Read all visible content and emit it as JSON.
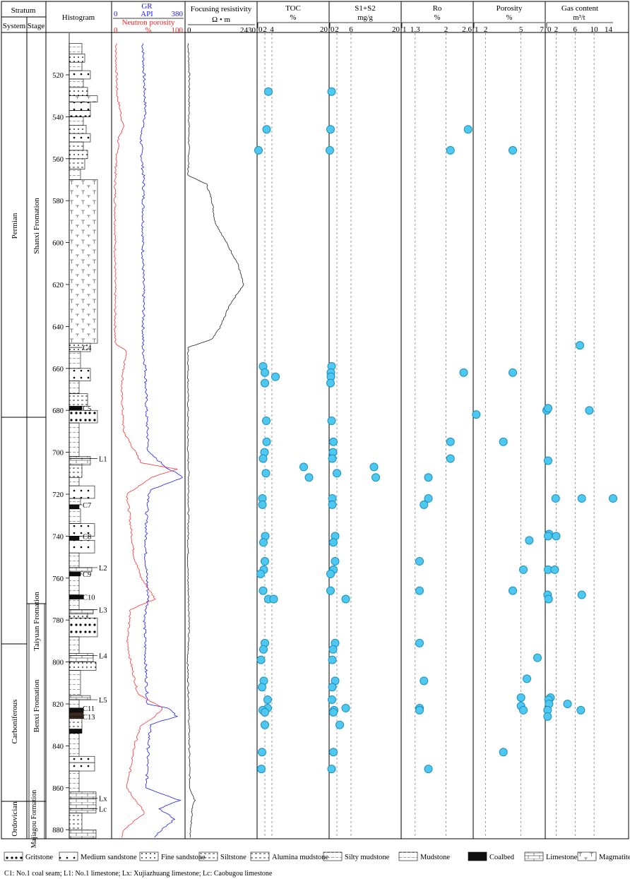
{
  "header": {
    "stratum": "Stratum",
    "system": "System",
    "stage": "Stage",
    "histogram": "Histogram",
    "gr_label": "GR",
    "gr_unit": "API",
    "gr_min": "0",
    "gr_max": "380",
    "np_label": "Neutron porosity",
    "np_min": "0",
    "np_unit": "%",
    "np_max": "100",
    "fr_label": "Focusing resistivity",
    "fr_unit": "Ω • m",
    "fr_min": "0",
    "fr_max": "2430"
  },
  "systems": [
    "Permian",
    "Carboniferous",
    "Ordovician"
  ],
  "formations": [
    "Shanxi Fromation",
    "Taiyuan Fromation",
    "Benxi Fromation",
    "Majiagou Formation"
  ],
  "depth_ticks": [
    520,
    540,
    560,
    580,
    600,
    620,
    640,
    660,
    680,
    700,
    720,
    740,
    760,
    780,
    800,
    820,
    840,
    860,
    880
  ],
  "markers": [
    {
      "label": "C4",
      "depth": 650
    },
    {
      "label": "C5",
      "depth": 679
    },
    {
      "label": "L1",
      "depth": 703
    },
    {
      "label": "C7",
      "depth": 725
    },
    {
      "label": "C8",
      "depth": 740
    },
    {
      "label": "L2",
      "depth": 755
    },
    {
      "label": "C9",
      "depth": 758
    },
    {
      "label": "C10",
      "depth": 769
    },
    {
      "label": "L3",
      "depth": 775
    },
    {
      "label": "L4",
      "depth": 797
    },
    {
      "label": "L5",
      "depth": 818
    },
    {
      "label": "C11",
      "depth": 822
    },
    {
      "label": "C13",
      "depth": 826
    },
    {
      "label": "Lx",
      "depth": 865
    },
    {
      "label": "Lc",
      "depth": 870
    }
  ],
  "chart_data": [
    {
      "type": "scatter",
      "title": "TOC",
      "unit": "%",
      "xlim": [
        0,
        20
      ],
      "ticks": [
        "0",
        "2",
        "4",
        "20"
      ],
      "points": [
        [
          3,
          528
        ],
        [
          2.5,
          546
        ],
        [
          0.2,
          556
        ],
        [
          1.5,
          659
        ],
        [
          2,
          662
        ],
        [
          5,
          664
        ],
        [
          2,
          667
        ],
        [
          2.4,
          685
        ],
        [
          2.5,
          695
        ],
        [
          1.9,
          700
        ],
        [
          1.5,
          703
        ],
        [
          13,
          707
        ],
        [
          2.3,
          710
        ],
        [
          14.5,
          712
        ],
        [
          1.3,
          722
        ],
        [
          1.3,
          725
        ],
        [
          2.1,
          740
        ],
        [
          1.6,
          743
        ],
        [
          2,
          752
        ],
        [
          1.7,
          756
        ],
        [
          0.8,
          758
        ],
        [
          1.5,
          766
        ],
        [
          3,
          770
        ],
        [
          4.5,
          770
        ],
        [
          2,
          791
        ],
        [
          1.6,
          794
        ],
        [
          0.9,
          799
        ],
        [
          1.7,
          809
        ],
        [
          1.2,
          812
        ],
        [
          2.8,
          818
        ],
        [
          2.8,
          822
        ],
        [
          1.4,
          823
        ],
        [
          2,
          824
        ],
        [
          2,
          830
        ],
        [
          1.2,
          843
        ],
        [
          1,
          851
        ]
      ]
    },
    {
      "type": "scatter",
      "title": "S1+S2",
      "unit": "mg/g",
      "xlim": [
        0,
        20
      ],
      "ticks": [
        "0",
        "2",
        "6",
        "20"
      ],
      "points": [
        [
          0.5,
          528
        ],
        [
          0.2,
          546
        ],
        [
          0,
          556
        ],
        [
          0.5,
          659
        ],
        [
          0.3,
          662
        ],
        [
          0.3,
          664
        ],
        [
          0.2,
          667
        ],
        [
          0.5,
          685
        ],
        [
          1,
          695
        ],
        [
          0.9,
          700
        ],
        [
          0.7,
          703
        ],
        [
          12.5,
          707
        ],
        [
          2,
          710
        ],
        [
          13,
          712
        ],
        [
          0.7,
          722
        ],
        [
          0.7,
          725
        ],
        [
          1.5,
          740
        ],
        [
          1,
          743
        ],
        [
          1.5,
          752
        ],
        [
          1,
          756
        ],
        [
          0.2,
          758
        ],
        [
          0.2,
          766
        ],
        [
          4.5,
          770
        ],
        [
          1.5,
          791
        ],
        [
          0.9,
          794
        ],
        [
          0.7,
          799
        ],
        [
          1.5,
          809
        ],
        [
          0.7,
          812
        ],
        [
          0.6,
          818
        ],
        [
          4.5,
          822
        ],
        [
          1.2,
          823
        ],
        [
          1,
          824
        ],
        [
          2.8,
          830
        ],
        [
          1,
          843
        ],
        [
          0.5,
          851
        ]
      ]
    },
    {
      "type": "scatter",
      "title": "Ro",
      "unit": "%",
      "xlim": [
        1,
        2.6
      ],
      "ticks": [
        "1",
        "1.3",
        "2",
        "2.6"
      ],
      "points": [
        [
          2.5,
          546
        ],
        [
          2.1,
          556
        ],
        [
          2.4,
          662
        ],
        [
          2.1,
          695
        ],
        [
          2.1,
          703
        ],
        [
          1.6,
          712
        ],
        [
          1.6,
          722
        ],
        [
          1.5,
          725
        ],
        [
          1.4,
          752
        ],
        [
          1.4,
          766
        ],
        [
          1.4,
          791
        ],
        [
          1.5,
          809
        ],
        [
          1.4,
          822
        ],
        [
          1.4,
          823
        ],
        [
          1.6,
          851
        ]
      ]
    },
    {
      "type": "scatter",
      "title": "Porosity",
      "unit": "%",
      "xlim": [
        1,
        7
      ],
      "ticks": [
        "1",
        "2",
        "5",
        "7"
      ],
      "points": [
        [
          4.3,
          556
        ],
        [
          4.3,
          662
        ],
        [
          1.2,
          682
        ],
        [
          3.5,
          695
        ],
        [
          5.7,
          742
        ],
        [
          5.2,
          756
        ],
        [
          4.3,
          766
        ],
        [
          6.4,
          798
        ],
        [
          5.5,
          808
        ],
        [
          5,
          817
        ],
        [
          5,
          821
        ],
        [
          5.2,
          823
        ],
        [
          3.5,
          843
        ]
      ]
    },
    {
      "type": "scatter",
      "title": "Gas content",
      "unit": "m³/t",
      "xlim": [
        0,
        14
      ],
      "ticks": [
        "0",
        "2",
        "6",
        "10",
        "14"
      ],
      "points": [
        [
          7,
          649
        ],
        [
          0,
          680
        ],
        [
          0.3,
          679
        ],
        [
          9,
          680
        ],
        [
          0.3,
          704
        ],
        [
          1.9,
          722
        ],
        [
          7.4,
          722
        ],
        [
          14,
          722
        ],
        [
          0.5,
          739
        ],
        [
          2,
          740
        ],
        [
          0.3,
          740
        ],
        [
          0.3,
          756
        ],
        [
          1.7,
          756
        ],
        [
          0.2,
          768
        ],
        [
          7.4,
          768
        ],
        [
          0.4,
          770
        ],
        [
          0.8,
          817
        ],
        [
          0.4,
          818
        ],
        [
          0.5,
          820
        ],
        [
          4.4,
          820
        ],
        [
          0.2,
          823
        ],
        [
          7.2,
          823
        ],
        [
          0.2,
          826
        ]
      ]
    },
    {
      "type": "line",
      "title": "GR",
      "unit": "API",
      "xlim": [
        0,
        380
      ],
      "ylim": [
        505,
        885
      ],
      "note": "continuous log curve; approximated values (data units: depth m, API)",
      "points": [
        [
          505,
          160
        ],
        [
          540,
          175
        ],
        [
          548,
          150
        ],
        [
          560,
          155
        ],
        [
          570,
          165
        ],
        [
          600,
          160
        ],
        [
          630,
          165
        ],
        [
          650,
          160
        ],
        [
          660,
          175
        ],
        [
          680,
          180
        ],
        [
          700,
          190
        ],
        [
          708,
          300
        ],
        [
          712,
          380
        ],
        [
          718,
          200
        ],
        [
          730,
          180
        ],
        [
          750,
          175
        ],
        [
          770,
          190
        ],
        [
          780,
          170
        ],
        [
          800,
          175
        ],
        [
          820,
          185
        ],
        [
          822,
          300
        ],
        [
          826,
          340
        ],
        [
          830,
          200
        ],
        [
          840,
          190
        ],
        [
          860,
          180
        ],
        [
          866,
          360
        ],
        [
          870,
          250
        ],
        [
          875,
          330
        ],
        [
          885,
          200
        ]
      ]
    },
    {
      "type": "line",
      "title": "Neutron porosity",
      "unit": "%",
      "xlim": [
        0,
        100
      ],
      "ylim": [
        505,
        885
      ],
      "note": "continuous log curve; approximated values",
      "points": [
        [
          505,
          5
        ],
        [
          510,
          4
        ],
        [
          530,
          6
        ],
        [
          545,
          15
        ],
        [
          550,
          8
        ],
        [
          560,
          5
        ],
        [
          570,
          3
        ],
        [
          640,
          3
        ],
        [
          648,
          3
        ],
        [
          652,
          20
        ],
        [
          660,
          15
        ],
        [
          670,
          12
        ],
        [
          690,
          15
        ],
        [
          705,
          40
        ],
        [
          708,
          90
        ],
        [
          712,
          55
        ],
        [
          720,
          20
        ],
        [
          735,
          25
        ],
        [
          750,
          30
        ],
        [
          760,
          40
        ],
        [
          770,
          60
        ],
        [
          775,
          25
        ],
        [
          790,
          20
        ],
        [
          800,
          25
        ],
        [
          815,
          35
        ],
        [
          822,
          70
        ],
        [
          826,
          60
        ],
        [
          830,
          40
        ],
        [
          840,
          30
        ],
        [
          850,
          25
        ],
        [
          860,
          20
        ],
        [
          865,
          30
        ],
        [
          872,
          45
        ],
        [
          880,
          15
        ],
        [
          885,
          10
        ]
      ]
    },
    {
      "type": "line",
      "title": "Focusing resistivity",
      "unit": "Ω • m",
      "xlim": [
        0,
        2430
      ],
      "ylim": [
        505,
        885
      ],
      "note": "continuous log curve; approximated values",
      "points": [
        [
          505,
          60
        ],
        [
          520,
          100
        ],
        [
          540,
          90
        ],
        [
          560,
          80
        ],
        [
          568,
          50
        ],
        [
          572,
          700
        ],
        [
          580,
          900
        ],
        [
          590,
          1000
        ],
        [
          600,
          1400
        ],
        [
          610,
          1800
        ],
        [
          620,
          2000
        ],
        [
          630,
          1500
        ],
        [
          640,
          1200
        ],
        [
          646,
          900
        ],
        [
          650,
          60
        ],
        [
          700,
          50
        ],
        [
          710,
          80
        ],
        [
          760,
          50
        ],
        [
          780,
          100
        ],
        [
          800,
          40
        ],
        [
          820,
          80
        ],
        [
          860,
          120
        ],
        [
          866,
          300
        ],
        [
          870,
          200
        ],
        [
          880,
          150
        ],
        [
          885,
          100
        ]
      ]
    }
  ],
  "legend": {
    "items": [
      {
        "label": "Gritstone",
        "pattern": "gritstone"
      },
      {
        "label": "Medium sandstone",
        "pattern": "medium"
      },
      {
        "label": "Fine sandstone",
        "pattern": "fine"
      },
      {
        "label": "Siltstone",
        "pattern": "siltstone"
      },
      {
        "label": "Alumina mudstone",
        "pattern": "alumina"
      },
      {
        "label": "Silty mudstone",
        "pattern": "silty"
      },
      {
        "label": "Mudstone",
        "pattern": "mudstone"
      },
      {
        "label": "Coalbed",
        "pattern": "coal"
      },
      {
        "label": "Limestone",
        "pattern": "limestone"
      },
      {
        "label": "Magmatite",
        "pattern": "magmatite"
      }
    ],
    "note": "C1: No.1 coal seam; L1: No.1 limestone; Lx: Xujiazhuang limestone; Lc: Caobugou limestone"
  },
  "colors": {
    "gr": "#1a1aff",
    "np": "#ff3333",
    "point_fill": "#4fc8ef",
    "point_stroke": "#1b8fc2",
    "coal": "#111111",
    "coal_c13": "#3a2a22"
  }
}
